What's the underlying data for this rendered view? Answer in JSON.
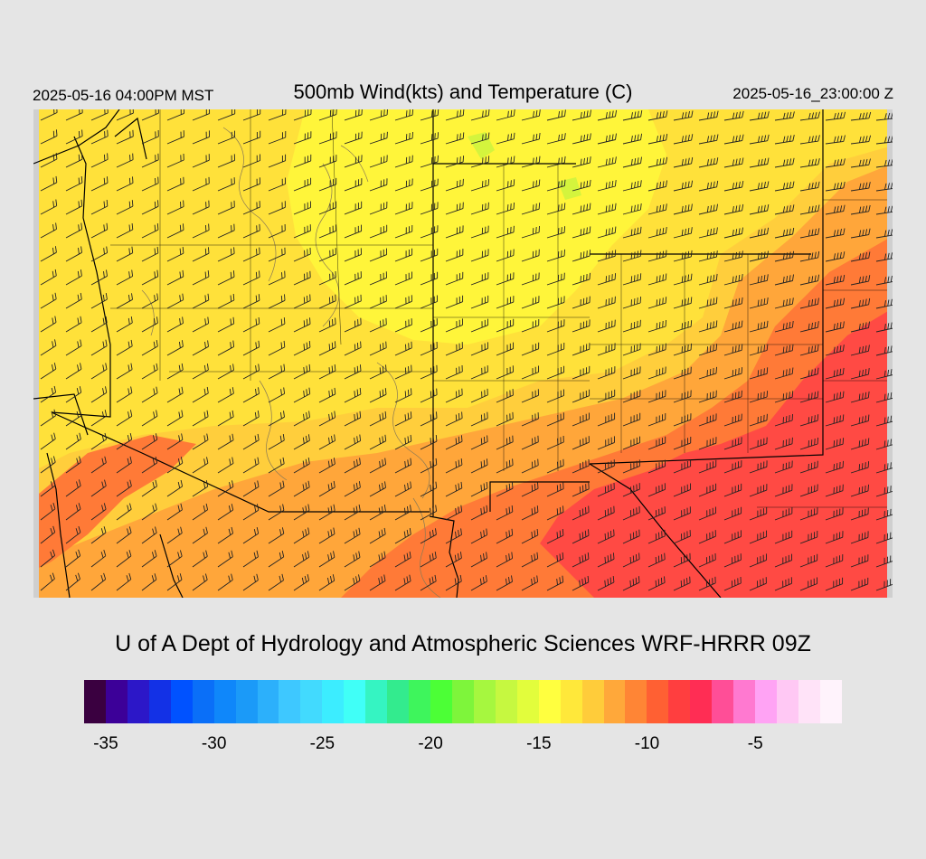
{
  "header": {
    "local_time": "2025-05-16 04:00PM MST",
    "title": "500mb Wind(kts) and Temperature (C)",
    "utc_time": "2025-05-16_23:00:00 Z"
  },
  "footer": {
    "credit": "U of A Dept of Hydrology and Atmospheric Sciences WRF-HRRR 09Z"
  },
  "colorbar": {
    "colors": [
      "#3a0040",
      "#3c0098",
      "#2c17c8",
      "#1331e6",
      "#0052ff",
      "#0a6ff8",
      "#0f87fa",
      "#1b9af8",
      "#2cb0fb",
      "#3ec8ff",
      "#42dafe",
      "#3cedff",
      "#40fff7",
      "#35f4c2",
      "#33eb8e",
      "#3ef55c",
      "#4cff36",
      "#7ef53b",
      "#a6f73f",
      "#c6f840",
      "#e2fd3c",
      "#ffff3f",
      "#ffe83a",
      "#ffcc3a",
      "#ffa83a",
      "#ff8535",
      "#ff6033",
      "#ff3e3f",
      "#ff2d54",
      "#ff4e97",
      "#ff79d0",
      "#ffa3f4",
      "#ffc8f4",
      "#ffe3f8",
      "#fff3fc"
    ],
    "tick_labels": [
      "-35",
      "-30",
      "-25",
      "-20",
      "-15",
      "-10",
      "-5"
    ]
  },
  "map": {
    "colors": {
      "yellow": "#ffe13a",
      "bright": "#fff53a",
      "gold": "#ffce3c",
      "orange": "#ffa63a",
      "deep": "#ff7a37",
      "red": "#ff4a44",
      "green": "#b8f340",
      "border": "#000000",
      "contour": "#8a7a55"
    }
  }
}
